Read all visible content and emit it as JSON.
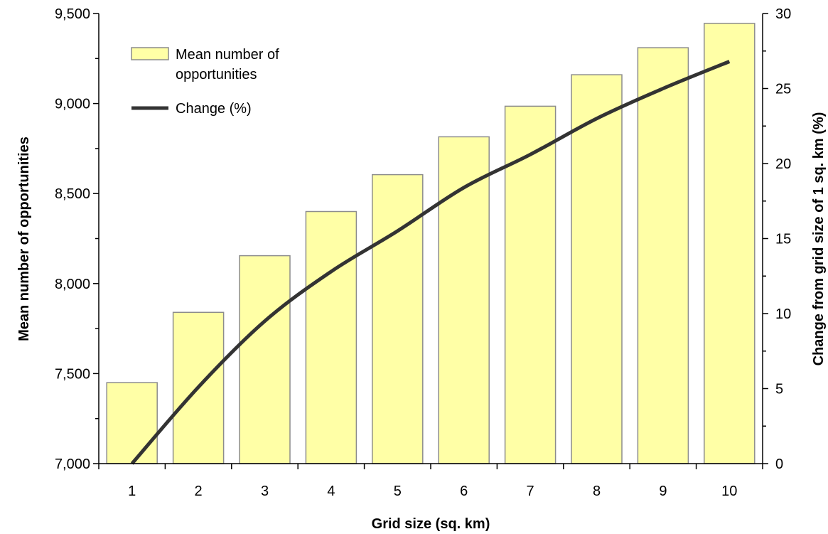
{
  "chart_data": {
    "type": "bar",
    "categories": [
      "1",
      "2",
      "3",
      "4",
      "5",
      "6",
      "7",
      "8",
      "9",
      "10"
    ],
    "series": [
      {
        "name": "Mean number of opportunities",
        "type": "bar",
        "axis": "left",
        "values": [
          7450,
          7840,
          8155,
          8400,
          8605,
          8815,
          8985,
          9160,
          9310,
          9445
        ]
      },
      {
        "name": "Change (%)",
        "type": "line",
        "axis": "right",
        "values": [
          0,
          5.1,
          9.5,
          12.8,
          15.5,
          18.4,
          20.6,
          23.0,
          25.0,
          26.8
        ]
      }
    ],
    "xlabel": "Grid size (sq. km)",
    "ylabel": "Mean number of opportunities",
    "y2label": "Change from grid size of 1 sq. km (%)",
    "ylim": [
      7000,
      9500
    ],
    "y2lim": [
      0,
      30
    ],
    "yticks": [
      "7,000",
      "7,500",
      "8,000",
      "8,500",
      "9,000",
      "9,500"
    ],
    "y2ticks": [
      "0",
      "5",
      "10",
      "15",
      "20",
      "25",
      "30"
    ],
    "legend_position": "top-left",
    "grid": false,
    "colors": {
      "bar_fill": "#FFFFA6",
      "bar_stroke": "#8C8C8C",
      "line": "#333333",
      "axis": "#000000"
    }
  }
}
